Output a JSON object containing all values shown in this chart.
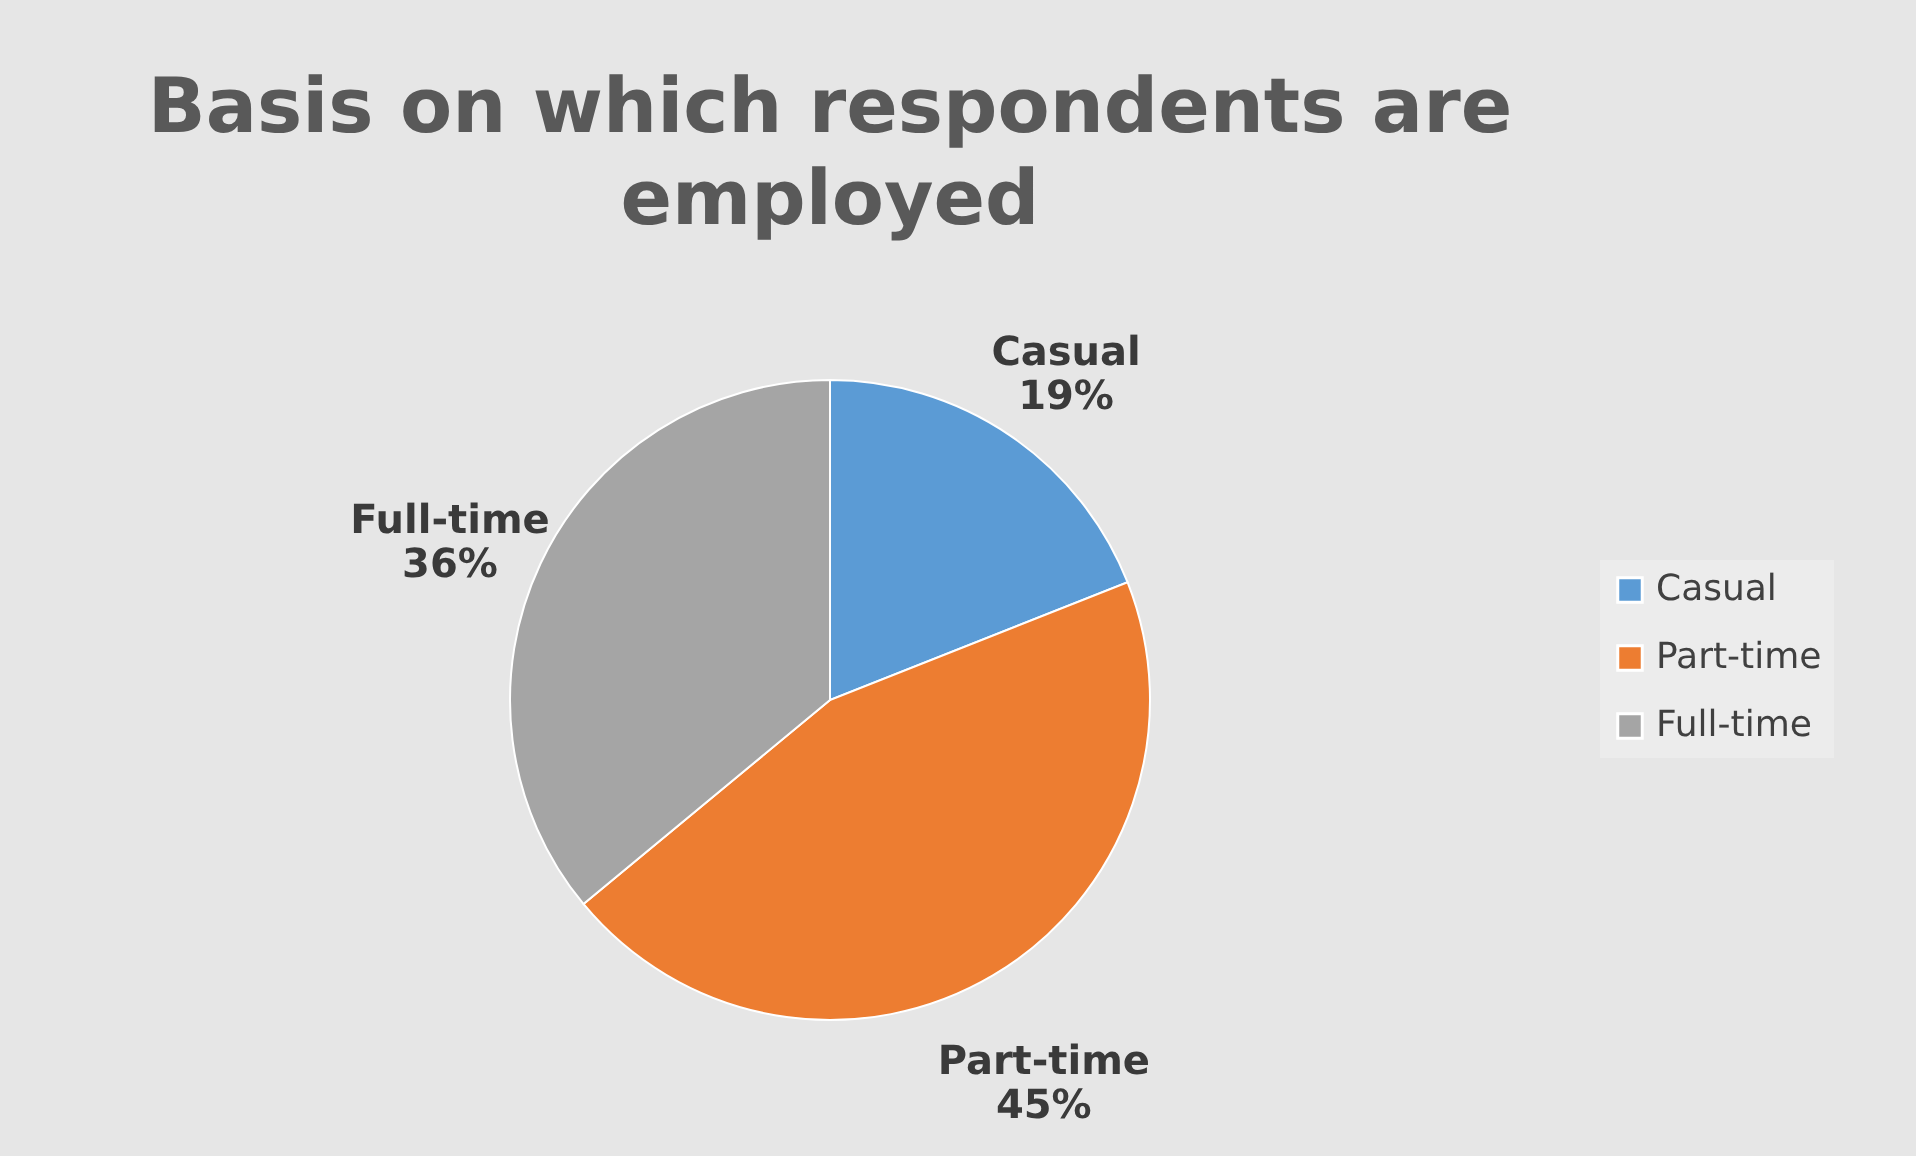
{
  "chart_data": {
    "type": "pie",
    "title": "Basis on which respondents are employed",
    "categories": [
      "Casual",
      "Part-time",
      "Full-time"
    ],
    "values": [
      19,
      45,
      36
    ],
    "colors": [
      "#5b9bd5",
      "#ed7d31",
      "#a5a5a5"
    ],
    "value_labels": [
      "19%",
      "45%",
      "36%"
    ],
    "legend": "right"
  }
}
